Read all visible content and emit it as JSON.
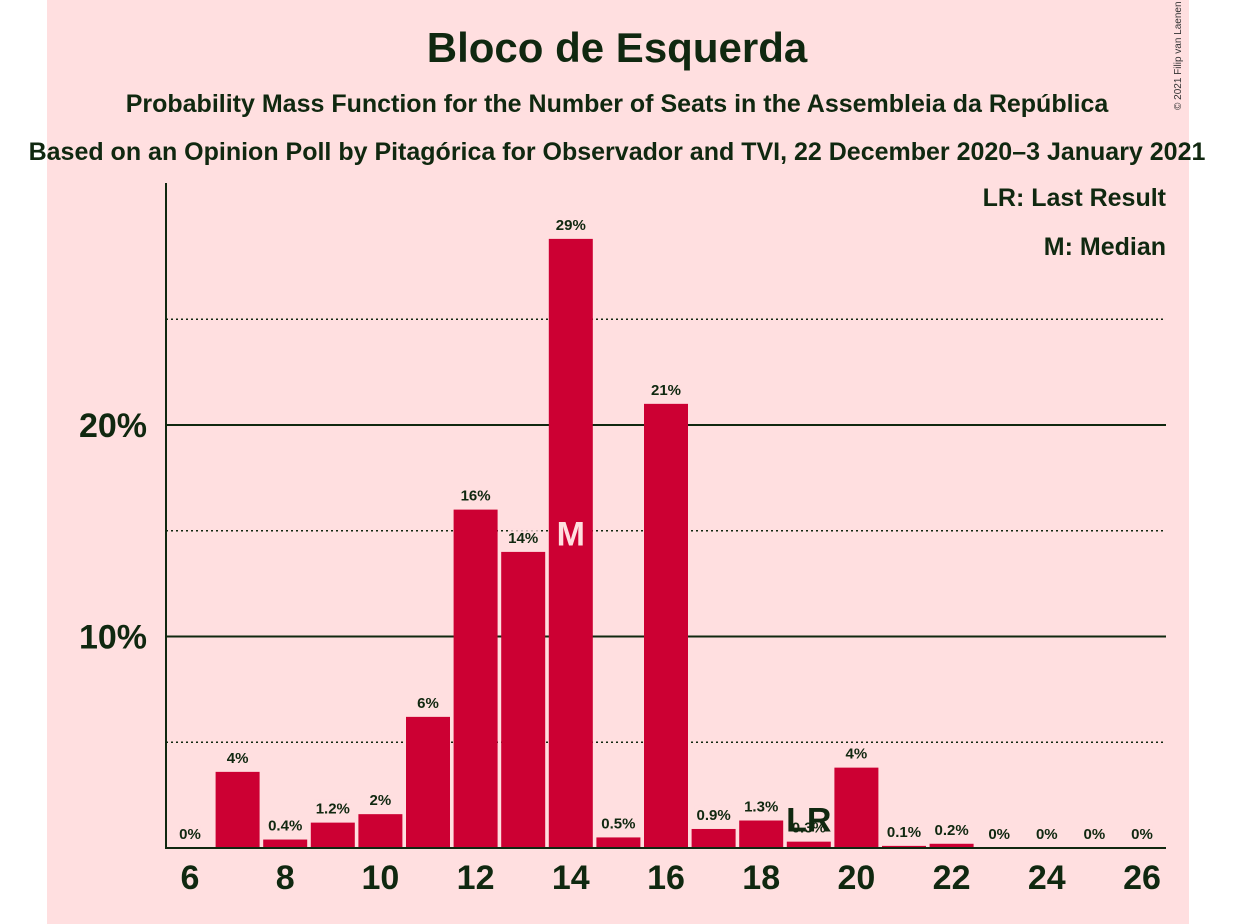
{
  "title": "Bloco de Esquerda",
  "subtitle": "Probability Mass Function for the Number of Seats in the Assembleia da República",
  "subtitle2": "Based on an Opinion Poll by Pitagórica for Observador and TVI, 22 December 2020–3 January 2021",
  "copyright": "© 2021 Filip van Laenen",
  "legend": {
    "last_result": "LR: Last Result",
    "median": "M: Median"
  },
  "colors": {
    "background": "#FFDFE0",
    "bar": "#CC0033",
    "text": "#102810"
  },
  "chart_data": {
    "type": "bar",
    "x": [
      6,
      7,
      8,
      9,
      10,
      11,
      12,
      13,
      14,
      15,
      16,
      17,
      18,
      19,
      20,
      21,
      22,
      23,
      24,
      25,
      26
    ],
    "values": [
      0,
      3.6,
      0.4,
      1.2,
      1.6,
      6.2,
      16,
      14,
      28.8,
      0.5,
      21,
      0.9,
      1.3,
      0.3,
      3.8,
      0.1,
      0.2,
      0,
      0,
      0,
      0
    ],
    "labels": [
      "0%",
      "4%",
      "0.4%",
      "1.2%",
      "2%",
      "6%",
      "16%",
      "14%",
      "29%",
      "0.5%",
      "21%",
      "0.9%",
      "1.3%",
      "0.3%",
      "4%",
      "0.1%",
      "0.2%",
      "0%",
      "0%",
      "0%",
      "0%"
    ],
    "xticks": [
      6,
      8,
      10,
      12,
      14,
      16,
      18,
      20,
      22,
      24,
      26
    ],
    "yticks": [
      {
        "value": 10,
        "label": "10%"
      },
      {
        "value": 20,
        "label": "20%"
      }
    ],
    "minor_gridlines": [
      5,
      15,
      25
    ],
    "ylim": [
      0,
      31.3
    ],
    "median_seat": 14,
    "median_marker": "M",
    "last_result_seat": 19,
    "last_result_marker": "LR"
  }
}
